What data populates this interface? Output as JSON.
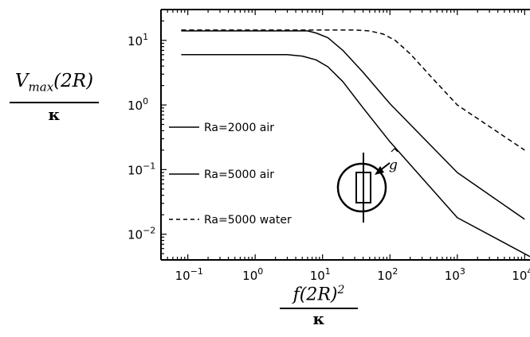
{
  "chart_data": {
    "type": "line",
    "title": "",
    "x_scale": "log",
    "y_scale": "log",
    "xlim": [
      0.04,
      12000
    ],
    "ylim": [
      0.004,
      30
    ],
    "xlabel": {
      "numerator": "f(2R)",
      "exponent": "2",
      "denominator": "κ"
    },
    "ylabel": {
      "numerator": "V",
      "subscript": "max",
      "suffix": "(2R)",
      "denominator": "κ"
    },
    "x_ticks": [
      {
        "value": 0.1,
        "base": "10",
        "exp": "−1"
      },
      {
        "value": 1,
        "base": "10",
        "exp": "0"
      },
      {
        "value": 10,
        "base": "10",
        "exp": "1"
      },
      {
        "value": 100,
        "base": "10",
        "exp": "2"
      },
      {
        "value": 1000,
        "base": "10",
        "exp": "3"
      },
      {
        "value": 10000,
        "base": "10",
        "exp": "4"
      }
    ],
    "y_ticks": [
      {
        "value": 0.01,
        "base": "10",
        "exp": "−2"
      },
      {
        "value": 0.1,
        "base": "10",
        "exp": "−1"
      },
      {
        "value": 1,
        "base": "10",
        "exp": "0"
      },
      {
        "value": 10,
        "base": "10",
        "exp": "1"
      }
    ],
    "grid": false,
    "legend_position": "left",
    "series": [
      {
        "name": "Ra=2000 air",
        "style": "solid",
        "x": [
          0.08,
          3,
          5,
          8,
          12,
          20,
          40,
          100,
          1000,
          12000
        ],
        "y": [
          6.0,
          6.0,
          5.7,
          5.0,
          3.9,
          2.3,
          0.9,
          0.27,
          0.018,
          0.0045
        ]
      },
      {
        "name": "Ra=5000 air",
        "style": "solid",
        "x": [
          0.08,
          6,
          8,
          12,
          20,
          40,
          100,
          1000,
          10000
        ],
        "y": [
          14.0,
          14.0,
          13.0,
          11.0,
          7.0,
          3.2,
          1.05,
          0.09,
          0.017
        ]
      },
      {
        "name": "Ra=5000 water",
        "style": "dashed",
        "x": [
          0.08,
          30,
          50,
          80,
          120,
          200,
          400,
          1000,
          10000
        ],
        "y": [
          14.5,
          14.5,
          14.0,
          12.5,
          10.0,
          6.2,
          2.8,
          1.0,
          0.2
        ]
      }
    ],
    "inset": {
      "vector_label": "g"
    }
  }
}
